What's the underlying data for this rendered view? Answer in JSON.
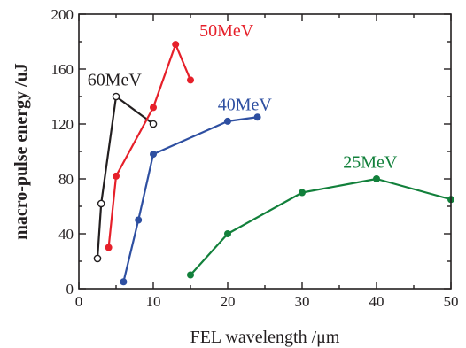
{
  "chart_data": {
    "type": "line",
    "title": "",
    "xlabel": "FEL wavelength /μm",
    "ylabel": "macro-pulse energy /uJ",
    "xlim": [
      0,
      50
    ],
    "ylim": [
      0,
      200
    ],
    "xticks": [
      0,
      10,
      20,
      30,
      40,
      50
    ],
    "yticks": [
      0,
      40,
      80,
      120,
      160,
      200
    ],
    "grid": false,
    "legend": "inline labels",
    "series": [
      {
        "name": "60MeV",
        "color": "#231f20",
        "marker": "open-circle",
        "x": [
          2.5,
          3,
          5,
          10
        ],
        "y": [
          22,
          62,
          140,
          120
        ]
      },
      {
        "name": "50MeV",
        "color": "#e6202a",
        "marker": "filled-circle",
        "x": [
          4,
          5,
          10,
          13,
          15
        ],
        "y": [
          30,
          82,
          132,
          178,
          152
        ]
      },
      {
        "name": "40MeV",
        "color": "#2e4fa1",
        "marker": "filled-circle",
        "x": [
          6,
          8,
          10,
          20,
          24
        ],
        "y": [
          5,
          50,
          98,
          122,
          125
        ]
      },
      {
        "name": "25MeV",
        "color": "#12803b",
        "marker": "filled-circle",
        "x": [
          15,
          20,
          30,
          40,
          50
        ],
        "y": [
          10,
          40,
          70,
          80,
          65
        ]
      }
    ]
  }
}
